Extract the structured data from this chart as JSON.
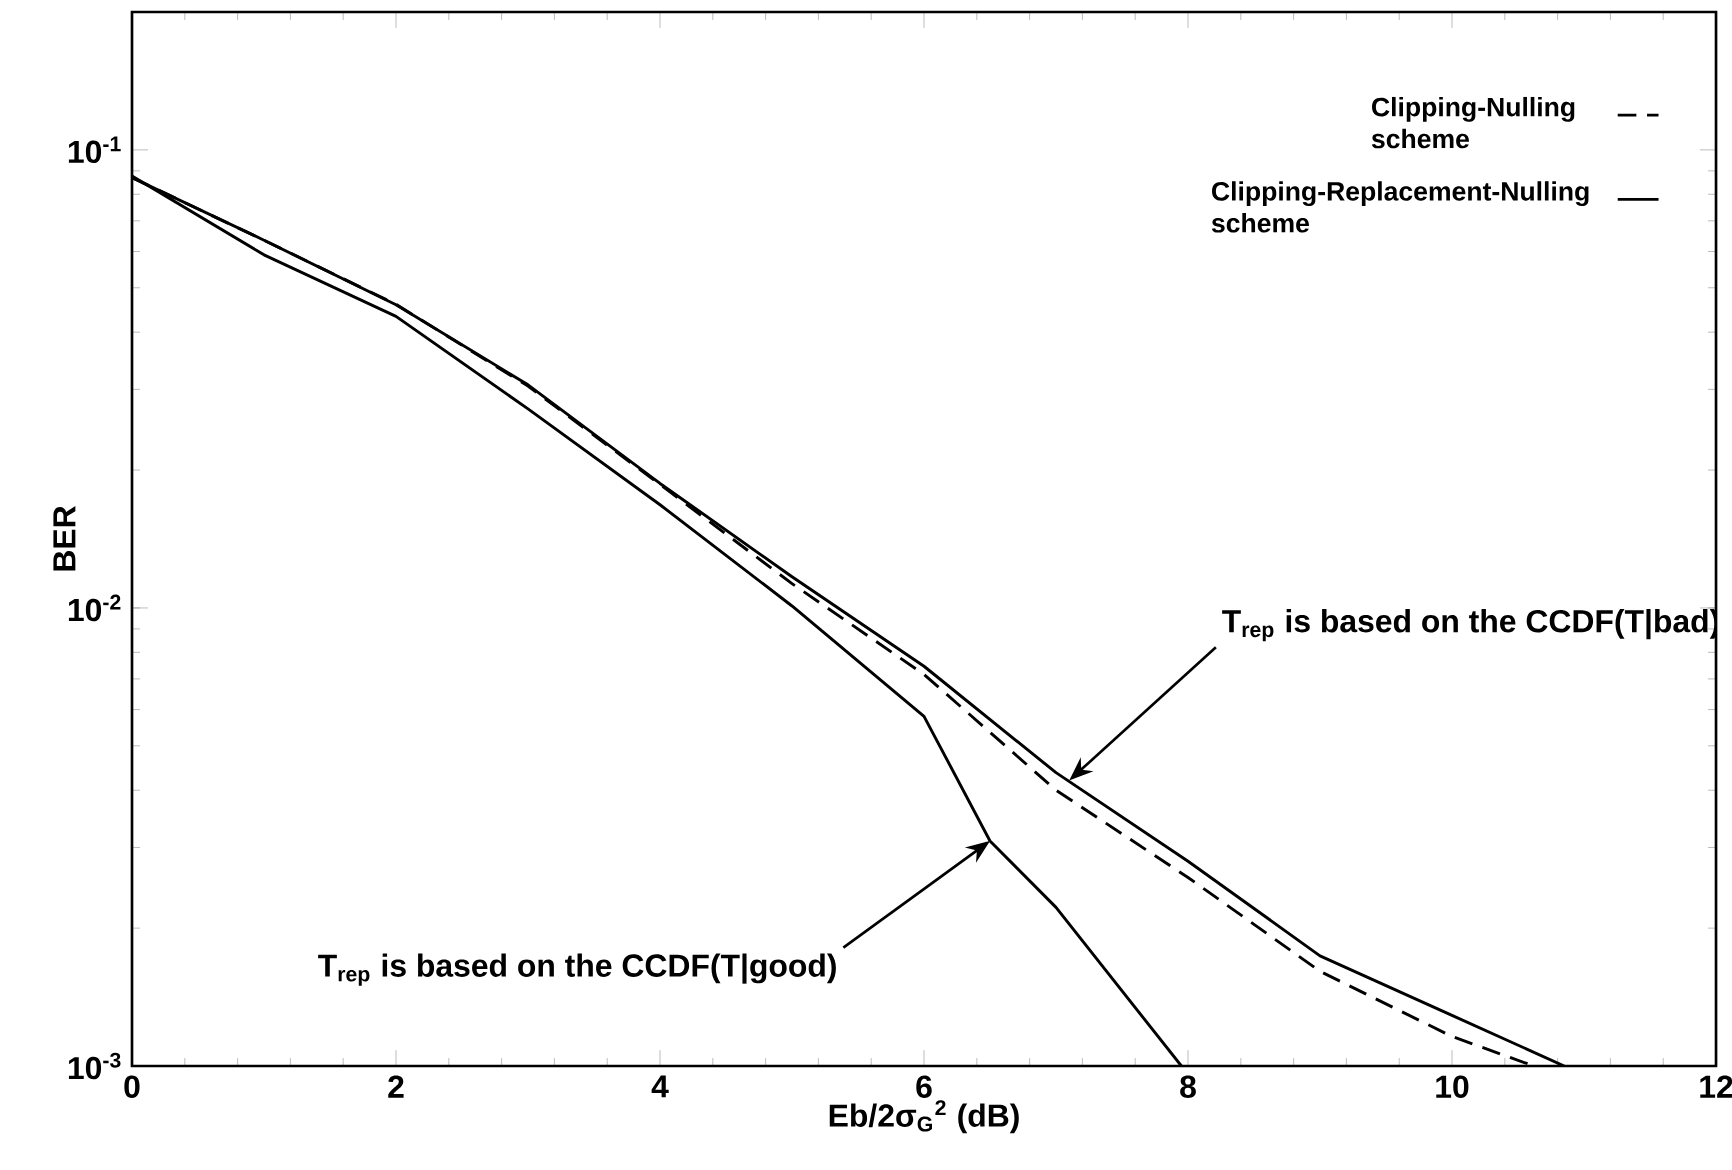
{
  "chart_data": {
    "type": "line",
    "xlabel": "Eb/2σ$_{G}$$^{2}$ (dB)",
    "ylabel": "BER",
    "log": "y",
    "xlim": [
      0,
      12
    ],
    "xticks": [
      0,
      2,
      4,
      6,
      8,
      10,
      12
    ],
    "ylim": [
      0.001,
      0.2
    ],
    "yticks": [
      {
        "value": 0.001,
        "label": "10$^{-3}$"
      },
      {
        "value": 0.01,
        "label": "10$^{-2}$"
      },
      {
        "value": 0.1,
        "label": "10$^{-1}$"
      }
    ],
    "grid": false,
    "legend": "top right",
    "marker": "none",
    "series": [
      {
        "name": "Clipping-Nulling scheme",
        "color": "#000000",
        "line_style": "dashed",
        "x": [
          0,
          1,
          2,
          3,
          4,
          5,
          6,
          7,
          8,
          9,
          10,
          10.62
        ],
        "values": [
          0.087,
          0.0635,
          0.046,
          0.0305,
          0.0186,
          0.0113,
          0.00716,
          0.004,
          0.00258,
          0.00161,
          0.00116,
          0.001
        ]
      },
      {
        "name": "Clipping-Replacement-Nulling scheme",
        "color": "#000000",
        "line_style": "solid",
        "x": [
          0,
          1,
          2,
          3,
          4,
          5,
          6,
          7,
          8,
          9,
          10,
          10.85
        ],
        "values": [
          0.087,
          0.0635,
          0.0459,
          0.0307,
          0.0187,
          0.0117,
          0.00746,
          0.00437,
          0.0028,
          0.00174,
          0.00129,
          0.001
        ]
      },
      {
        "color": "#000000",
        "line_style": "solid",
        "x": [
          0,
          1,
          2,
          3,
          4,
          5,
          6,
          6.5,
          7,
          7.95
        ],
        "values": [
          0.0877,
          0.059,
          0.0433,
          0.0272,
          0.0168,
          0.0101,
          0.0058,
          0.0031,
          0.00222,
          0.001
        ]
      }
    ],
    "annotations": [
      {
        "text": "T$_{rep}$ is based on the CCDF(T|bad)",
        "x": 7.1,
        "y": 0.0042
      },
      {
        "text": "T$_{rep}$ is based on the CCDF(T|good)",
        "x": 6.5,
        "y": 0.0031
      }
    ]
  }
}
